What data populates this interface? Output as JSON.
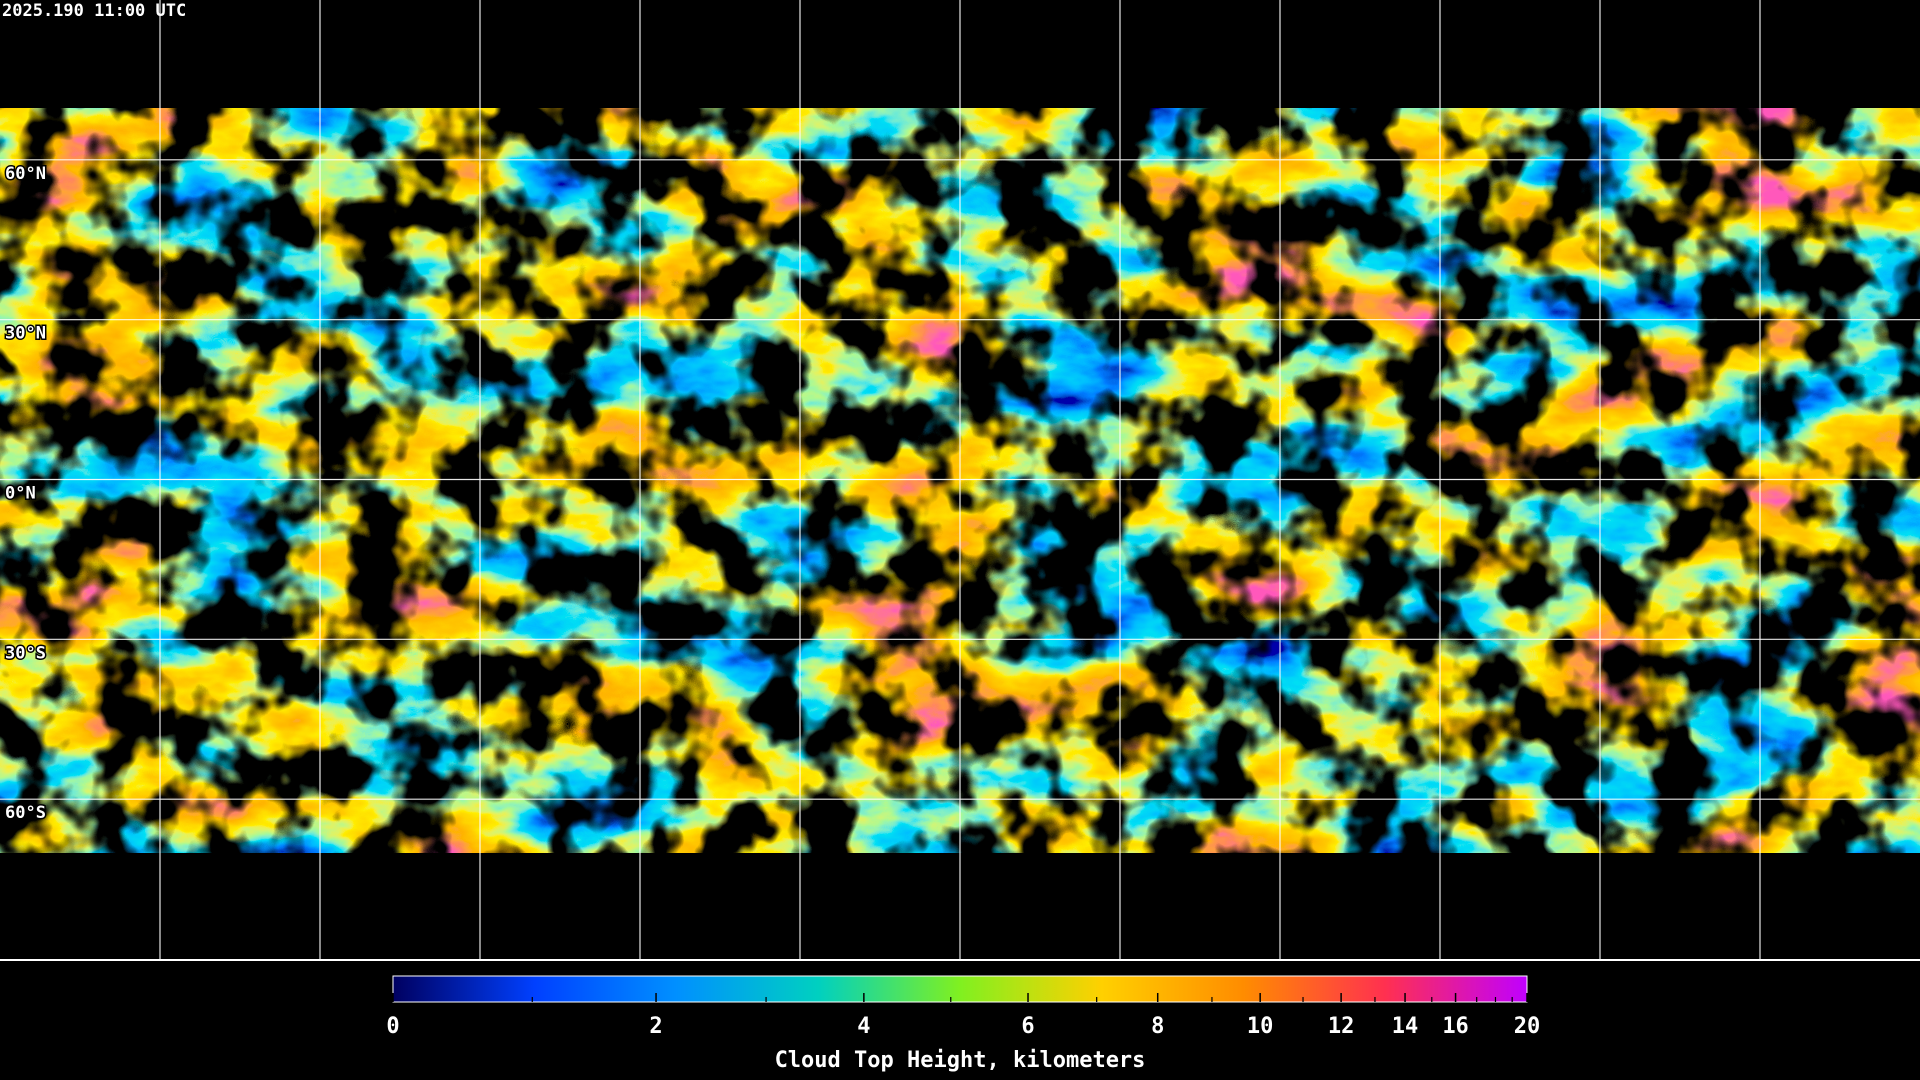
{
  "header": {
    "timestamp": "2025.190 11:00 UTC"
  },
  "map": {
    "lonlim": [
      -180,
      180
    ],
    "latlim": [
      -90,
      90
    ],
    "parallels": [
      {
        "value": 60,
        "label": "60°N"
      },
      {
        "value": 30,
        "label": "30°N"
      },
      {
        "value": 0,
        "label": "0°N"
      },
      {
        "value": -30,
        "label": "30°S"
      },
      {
        "value": -60,
        "label": "60°S"
      }
    ],
    "meridians": [
      -150,
      -120,
      -90,
      -60,
      -30,
      0,
      30,
      60,
      90,
      120,
      150
    ]
  },
  "colorbar": {
    "label": "Cloud Top Height, kilometers",
    "lim": [
      0,
      20
    ],
    "ticks": [
      0,
      2,
      4,
      6,
      8,
      10,
      12,
      14,
      16,
      20
    ],
    "minor_ticks": [
      1,
      3,
      5,
      7,
      9,
      11,
      13,
      15,
      17,
      18,
      19
    ],
    "colors": [
      "#000060",
      "#0040ff",
      "#0090ff",
      "#00d0c0",
      "#80f020",
      "#ffd000",
      "#ff8c00",
      "#ff3050",
      "#c000ff"
    ]
  }
}
